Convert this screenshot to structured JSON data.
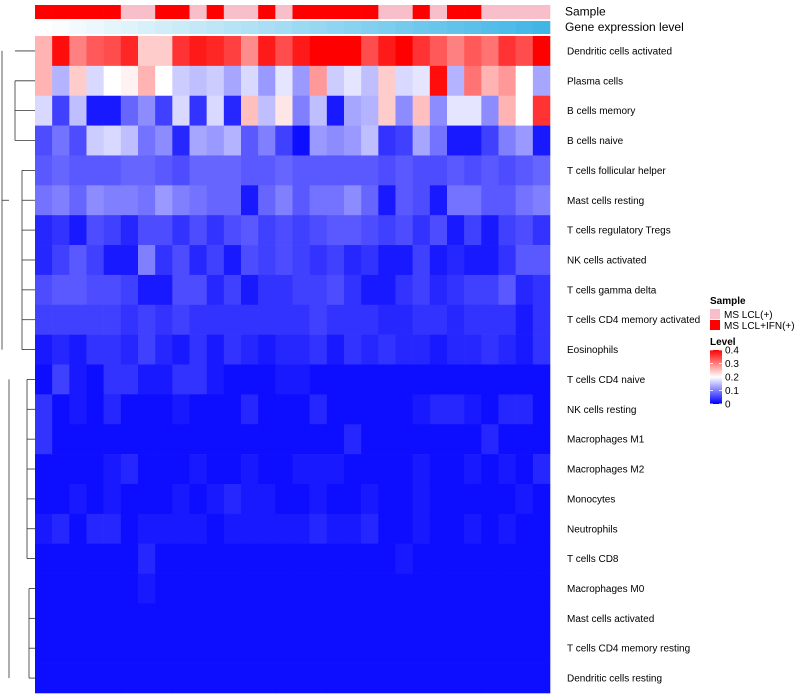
{
  "chart_data": {
    "type": "heatmap",
    "title": "",
    "annotation_labels": [
      "Sample",
      "Gene expression level"
    ],
    "n_columns": 30,
    "sample_groups": [
      1,
      1,
      1,
      1,
      1,
      0,
      0,
      1,
      1,
      0,
      1,
      0,
      0,
      1,
      0,
      1,
      1,
      1,
      1,
      1,
      0,
      0,
      1,
      0,
      1,
      1,
      0,
      0,
      0,
      0
    ],
    "expression_annotation": [
      0.0,
      0.03,
      0.07,
      0.1,
      0.14,
      0.17,
      0.21,
      0.24,
      0.28,
      0.31,
      0.34,
      0.38,
      0.41,
      0.45,
      0.48,
      0.52,
      0.55,
      0.59,
      0.62,
      0.66,
      0.69,
      0.72,
      0.76,
      0.79,
      0.83,
      0.86,
      0.9,
      0.93,
      0.97,
      1.0
    ],
    "rows": [
      {
        "name": "Dendritic cells activated",
        "values": [
          0.26,
          0.39,
          0.3,
          0.33,
          0.34,
          0.37,
          0.24,
          0.24,
          0.36,
          0.38,
          0.37,
          0.35,
          0.29,
          0.38,
          0.34,
          0.38,
          0.42,
          0.42,
          0.4,
          0.34,
          0.38,
          0.4,
          0.36,
          0.33,
          0.3,
          0.33,
          0.31,
          0.36,
          0.34,
          0.4
        ]
      },
      {
        "name": "Plasma cells",
        "values": [
          0.26,
          0.14,
          0.24,
          0.17,
          0.2,
          0.21,
          0.26,
          0.2,
          0.16,
          0.15,
          0.16,
          0.13,
          0.17,
          0.12,
          0.18,
          0.12,
          0.28,
          0.16,
          0.18,
          0.15,
          0.24,
          0.17,
          0.18,
          0.39,
          0.14,
          0.31,
          0.26,
          0.28,
          0.2,
          0.13
        ]
      },
      {
        "name": "B cells memory",
        "values": [
          0.17,
          0.05,
          0.15,
          0.02,
          0.02,
          0.08,
          0.11,
          0.05,
          0.17,
          0.04,
          0.17,
          0.03,
          0.25,
          0.15,
          0.22,
          0.1,
          0.15,
          0.02,
          0.13,
          0.14,
          0.24,
          0.11,
          0.25,
          0.11,
          0.18,
          0.18,
          0.11,
          0.26,
          0.2,
          0.36
        ]
      },
      {
        "name": "B cells naive",
        "values": [
          0.06,
          0.09,
          0.06,
          0.16,
          0.17,
          0.15,
          0.09,
          0.11,
          0.03,
          0.13,
          0.12,
          0.14,
          0.07,
          0.1,
          0.05,
          0.01,
          0.12,
          0.11,
          0.12,
          0.15,
          0.04,
          0.05,
          0.13,
          0.09,
          0.02,
          0.02,
          0.05,
          0.1,
          0.12,
          0.02
        ]
      },
      {
        "name": "T cells follicular helper",
        "values": [
          0.07,
          0.08,
          0.07,
          0.07,
          0.07,
          0.08,
          0.08,
          0.07,
          0.06,
          0.08,
          0.08,
          0.08,
          0.07,
          0.07,
          0.08,
          0.07,
          0.07,
          0.07,
          0.07,
          0.07,
          0.06,
          0.07,
          0.06,
          0.06,
          0.07,
          0.06,
          0.07,
          0.06,
          0.07,
          0.08
        ]
      },
      {
        "name": "Mast cells resting",
        "values": [
          0.09,
          0.1,
          0.08,
          0.11,
          0.1,
          0.1,
          0.09,
          0.12,
          0.1,
          0.09,
          0.08,
          0.08,
          0.02,
          0.08,
          0.1,
          0.07,
          0.09,
          0.09,
          0.11,
          0.08,
          0.02,
          0.07,
          0.06,
          0.02,
          0.09,
          0.09,
          0.07,
          0.07,
          0.09,
          0.1
        ]
      },
      {
        "name": "T cells regulatory  Tregs",
        "values": [
          0.03,
          0.04,
          0.02,
          0.06,
          0.05,
          0.03,
          0.06,
          0.06,
          0.04,
          0.06,
          0.04,
          0.06,
          0.07,
          0.05,
          0.06,
          0.05,
          0.06,
          0.07,
          0.07,
          0.06,
          0.05,
          0.06,
          0.04,
          0.06,
          0.02,
          0.05,
          0.02,
          0.05,
          0.06,
          0.04
        ]
      },
      {
        "name": "NK cells activated",
        "values": [
          0.03,
          0.05,
          0.07,
          0.05,
          0.02,
          0.02,
          0.1,
          0.04,
          0.06,
          0.03,
          0.05,
          0.02,
          0.06,
          0.05,
          0.06,
          0.05,
          0.04,
          0.05,
          0.03,
          0.04,
          0.02,
          0.02,
          0.05,
          0.02,
          0.03,
          0.02,
          0.02,
          0.04,
          0.07,
          0.07
        ]
      },
      {
        "name": "T cells gamma delta",
        "values": [
          0.06,
          0.07,
          0.07,
          0.06,
          0.06,
          0.05,
          0.02,
          0.02,
          0.06,
          0.06,
          0.03,
          0.05,
          0.02,
          0.04,
          0.04,
          0.05,
          0.05,
          0.06,
          0.04,
          0.02,
          0.02,
          0.04,
          0.05,
          0.03,
          0.04,
          0.05,
          0.05,
          0.07,
          0.03,
          0.04
        ]
      },
      {
        "name": "T cells CD4 memory activated",
        "values": [
          0.05,
          0.05,
          0.05,
          0.05,
          0.05,
          0.04,
          0.05,
          0.04,
          0.05,
          0.04,
          0.04,
          0.04,
          0.04,
          0.04,
          0.04,
          0.04,
          0.05,
          0.04,
          0.04,
          0.04,
          0.03,
          0.03,
          0.04,
          0.04,
          0.03,
          0.04,
          0.04,
          0.04,
          0.02,
          0.04
        ]
      },
      {
        "name": "Eosinophils",
        "values": [
          0.02,
          0.03,
          0.02,
          0.04,
          0.04,
          0.03,
          0.05,
          0.03,
          0.02,
          0.04,
          0.02,
          0.04,
          0.03,
          0.02,
          0.03,
          0.03,
          0.04,
          0.02,
          0.04,
          0.03,
          0.04,
          0.03,
          0.03,
          0.02,
          0.03,
          0.03,
          0.04,
          0.03,
          0.02,
          0.04
        ]
      },
      {
        "name": "T cells CD4 naive",
        "values": [
          0.01,
          0.05,
          0.02,
          0.01,
          0.04,
          0.04,
          0.02,
          0.02,
          0.04,
          0.04,
          0.02,
          0.01,
          0.01,
          0.01,
          0.02,
          0.02,
          0.01,
          0.01,
          0.01,
          0.01,
          0.01,
          0.01,
          0.01,
          0.01,
          0.01,
          0.01,
          0.01,
          0.01,
          0.01,
          0.01
        ]
      },
      {
        "name": "NK cells resting",
        "values": [
          0.04,
          0.01,
          0.02,
          0.01,
          0.03,
          0.01,
          0.01,
          0.01,
          0.02,
          0.01,
          0.01,
          0.01,
          0.03,
          0.01,
          0.01,
          0.01,
          0.03,
          0.01,
          0.01,
          0.01,
          0.01,
          0.01,
          0.02,
          0.03,
          0.03,
          0.02,
          0.01,
          0.03,
          0.03,
          0.01
        ]
      },
      {
        "name": "Macrophages M1",
        "values": [
          0.04,
          0.01,
          0.01,
          0.01,
          0.01,
          0.01,
          0.01,
          0.01,
          0.01,
          0.01,
          0.01,
          0.01,
          0.01,
          0.01,
          0.01,
          0.01,
          0.01,
          0.01,
          0.03,
          0.01,
          0.01,
          0.01,
          0.01,
          0.01,
          0.01,
          0.01,
          0.03,
          0.01,
          0.01,
          0.01
        ]
      },
      {
        "name": "Macrophages M2",
        "values": [
          0.01,
          0.01,
          0.01,
          0.01,
          0.02,
          0.03,
          0.01,
          0.01,
          0.01,
          0.02,
          0.01,
          0.01,
          0.02,
          0.01,
          0.01,
          0.02,
          0.02,
          0.02,
          0.01,
          0.01,
          0.01,
          0.01,
          0.02,
          0.01,
          0.01,
          0.02,
          0.01,
          0.02,
          0.01,
          0.03
        ]
      },
      {
        "name": "Monocytes",
        "values": [
          0.01,
          0.01,
          0.02,
          0.01,
          0.02,
          0.01,
          0.01,
          0.01,
          0.02,
          0.01,
          0.02,
          0.03,
          0.02,
          0.02,
          0.01,
          0.01,
          0.02,
          0.01,
          0.01,
          0.02,
          0.01,
          0.01,
          0.02,
          0.01,
          0.01,
          0.01,
          0.01,
          0.01,
          0.02,
          0.01
        ]
      },
      {
        "name": "Neutrophils",
        "values": [
          0.02,
          0.03,
          0.01,
          0.03,
          0.03,
          0.01,
          0.02,
          0.02,
          0.02,
          0.02,
          0.01,
          0.02,
          0.02,
          0.02,
          0.02,
          0.02,
          0.03,
          0.02,
          0.02,
          0.03,
          0.01,
          0.01,
          0.02,
          0.01,
          0.01,
          0.02,
          0.01,
          0.02,
          0.01,
          0.01
        ]
      },
      {
        "name": "T cells CD8",
        "values": [
          0.01,
          0.01,
          0.01,
          0.01,
          0.01,
          0.01,
          0.03,
          0.01,
          0.01,
          0.01,
          0.01,
          0.01,
          0.01,
          0.01,
          0.01,
          0.01,
          0.01,
          0.01,
          0.01,
          0.01,
          0.01,
          0.02,
          0.01,
          0.01,
          0.01,
          0.01,
          0.01,
          0.01,
          0.01,
          0.01
        ]
      },
      {
        "name": "Macrophages M0",
        "values": [
          0.01,
          0.01,
          0.01,
          0.01,
          0.01,
          0.01,
          0.02,
          0.01,
          0.01,
          0.01,
          0.01,
          0.01,
          0.01,
          0.01,
          0.01,
          0.01,
          0.01,
          0.01,
          0.01,
          0.01,
          0.01,
          0.01,
          0.01,
          0.01,
          0.01,
          0.01,
          0.01,
          0.01,
          0.01,
          0.01
        ]
      },
      {
        "name": "Mast cells activated",
        "values": [
          0.01,
          0.01,
          0.01,
          0.01,
          0.01,
          0.01,
          0.01,
          0.01,
          0.01,
          0.01,
          0.01,
          0.01,
          0.01,
          0.01,
          0.01,
          0.01,
          0.01,
          0.01,
          0.01,
          0.01,
          0.01,
          0.01,
          0.01,
          0.01,
          0.01,
          0.01,
          0.01,
          0.01,
          0.01,
          0.01
        ]
      },
      {
        "name": "T cells CD4 memory resting",
        "values": [
          0.01,
          0.01,
          0.01,
          0.01,
          0.01,
          0.01,
          0.01,
          0.01,
          0.01,
          0.01,
          0.01,
          0.01,
          0.01,
          0.01,
          0.01,
          0.01,
          0.01,
          0.01,
          0.01,
          0.01,
          0.01,
          0.01,
          0.01,
          0.01,
          0.01,
          0.01,
          0.01,
          0.01,
          0.01,
          0.01
        ]
      },
      {
        "name": "Dendritic cells resting",
        "values": [
          0.01,
          0.01,
          0.01,
          0.01,
          0.01,
          0.01,
          0.01,
          0.01,
          0.01,
          0.01,
          0.01,
          0.01,
          0.01,
          0.01,
          0.01,
          0.01,
          0.01,
          0.01,
          0.01,
          0.01,
          0.01,
          0.01,
          0.01,
          0.01,
          0.01,
          0.01,
          0.01,
          0.01,
          0.01,
          0.01
        ]
      }
    ],
    "legend": {
      "sample_title": "Sample",
      "sample_entries": [
        {
          "label": "MS LCL(+)",
          "color": "#f8bfca"
        },
        {
          "label": "MS LCL+IFN(+)",
          "color": "#ff0000"
        }
      ],
      "level_title": "Level",
      "level_ticks": [
        {
          "value": 0.4,
          "label": "0.4"
        },
        {
          "value": 0.3,
          "label": "0.3"
        },
        {
          "value": 0.2,
          "label": "0.2"
        },
        {
          "value": 0.1,
          "label": "0.1"
        },
        {
          "value": 0.0,
          "label": "0"
        }
      ],
      "level_range": [
        0,
        0.4
      ]
    },
    "colors": {
      "low": "#0000ff",
      "mid": "#ffffff",
      "high": "#ff0000",
      "annot_low": "#ffffff",
      "annot_high": "#41b6e6"
    }
  }
}
